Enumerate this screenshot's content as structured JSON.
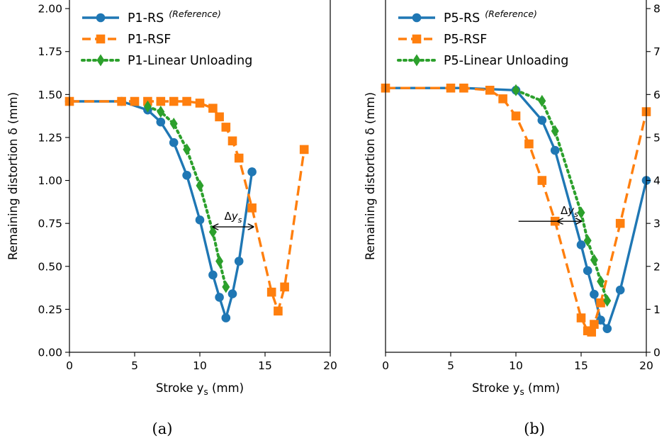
{
  "chart_data": [
    {
      "panel": "a",
      "caption": "(a)",
      "type": "line",
      "xlabel": "Stroke y",
      "xlabel_sub": "s",
      "xlabel_unit": " (mm)",
      "ylabel": "Remaining distortion δ (mm)",
      "xlim": [
        0,
        20
      ],
      "ylim": [
        0,
        2.05
      ],
      "xticks": [
        0,
        5,
        10,
        15,
        20
      ],
      "yticks": [
        0.0,
        0.25,
        0.5,
        0.75,
        1.0,
        1.25,
        1.5,
        1.75,
        2.0
      ],
      "ytick_labels": [
        "0.00",
        "0.25",
        "0.50",
        "0.75",
        "1.00",
        "1.25",
        "1.50",
        "1.75",
        "2.00"
      ],
      "y_axis_side": "left",
      "grid": false,
      "legend_position": "top-left",
      "series": [
        {
          "name": "P1-RS",
          "note": "(Reference)",
          "color": "#1f77b4",
          "marker": "circle",
          "line": "solid",
          "x": [
            0,
            4,
            6,
            7,
            8,
            9,
            10,
            11,
            11.5,
            12,
            12.5,
            13,
            14
          ],
          "y": [
            1.46,
            1.46,
            1.41,
            1.34,
            1.22,
            1.03,
            0.77,
            0.45,
            0.32,
            0.2,
            0.34,
            0.53,
            1.05
          ]
        },
        {
          "name": "P1-RSF",
          "color": "#ff7f0e",
          "marker": "square",
          "line": "dashed",
          "x": [
            0,
            4,
            5,
            6,
            7,
            8,
            9,
            10,
            11,
            11.5,
            12,
            12.5,
            13,
            14,
            15.5,
            16,
            16.5,
            18
          ],
          "y": [
            1.46,
            1.46,
            1.46,
            1.46,
            1.46,
            1.46,
            1.46,
            1.45,
            1.42,
            1.37,
            1.31,
            1.23,
            1.13,
            0.84,
            0.35,
            0.24,
            0.38,
            1.18
          ]
        },
        {
          "name": "P1-Linear Unloading",
          "color": "#2ca02c",
          "marker": "diamond",
          "line": "dotted",
          "x": [
            6,
            7,
            8,
            9,
            10,
            11,
            11.5,
            12
          ],
          "y": [
            1.43,
            1.4,
            1.33,
            1.18,
            0.97,
            0.7,
            0.53,
            0.38
          ]
        }
      ],
      "annotation": {
        "text": "Δy",
        "text_sub": "s",
        "arrow_x": [
          11.0,
          14.1
        ],
        "arrow_y": 0.73,
        "direction": "both"
      }
    },
    {
      "panel": "b",
      "caption": "(b)",
      "type": "line",
      "xlabel": "Stroke y",
      "xlabel_sub": "s",
      "xlabel_unit": " (mm)",
      "ylabel": "Remaining distortion δ (mm)",
      "xlim": [
        0,
        20
      ],
      "ylim": [
        0,
        8.2
      ],
      "xticks": [
        0,
        5,
        10,
        15,
        20
      ],
      "yticks": [
        0,
        1,
        2,
        3,
        4,
        5,
        6,
        7,
        8
      ],
      "ytick_labels": [
        "0",
        "1",
        "2",
        "3",
        "4",
        "5",
        "6",
        "7",
        "8"
      ],
      "y_axis_side": "right",
      "grid": false,
      "legend_position": "top-left",
      "series": [
        {
          "name": "P5-RS",
          "note": "(Reference)",
          "color": "#1f77b4",
          "marker": "circle",
          "line": "solid",
          "x": [
            0,
            6,
            10,
            12,
            13,
            15,
            15.5,
            16,
            16.5,
            17,
            18,
            20
          ],
          "y": [
            6.15,
            6.15,
            6.1,
            5.4,
            4.7,
            2.5,
            1.9,
            1.35,
            0.75,
            0.55,
            1.45,
            4.0
          ]
        },
        {
          "name": "P5-RSF",
          "color": "#ff7f0e",
          "marker": "square",
          "line": "dashed",
          "x": [
            0,
            5,
            6,
            8,
            9,
            10,
            11,
            12,
            13,
            15,
            15.5,
            15.8,
            16,
            16.5,
            18,
            20
          ],
          "y": [
            6.15,
            6.15,
            6.15,
            6.1,
            5.9,
            5.5,
            4.85,
            4.0,
            3.05,
            0.8,
            0.5,
            0.47,
            0.65,
            1.15,
            3.0,
            5.6
          ]
        },
        {
          "name": "P5-Linear Unloading",
          "color": "#2ca02c",
          "marker": "diamond",
          "line": "dotted",
          "x": [
            10,
            12,
            13,
            15,
            15.5,
            16,
            16.5,
            17
          ],
          "y": [
            6.1,
            5.85,
            5.15,
            3.25,
            2.6,
            2.15,
            1.65,
            1.2
          ]
        }
      ],
      "annotation": {
        "text": "Δy",
        "text_sub": "s",
        "arrow_x": [
          13.2,
          15.0
        ],
        "arrow_y": 3.05,
        "lead_line_from_x": 10.2,
        "direction": "both"
      }
    }
  ]
}
